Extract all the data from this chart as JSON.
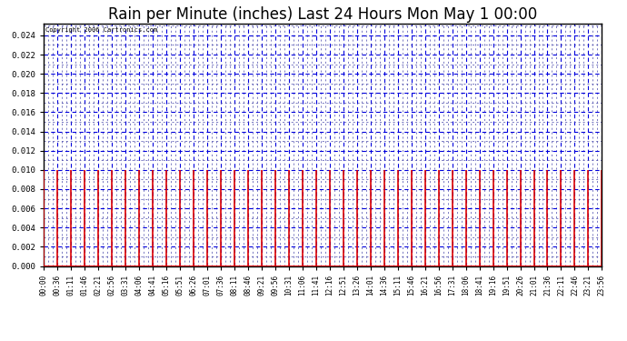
{
  "title": "Rain per Minute (inches) Last 24 Hours Mon May 1 00:00",
  "copyright_text": "Copyright 2006 Cartronics.com",
  "ylim": [
    0.0,
    0.0252
  ],
  "yticks": [
    0.0,
    0.002,
    0.004,
    0.006,
    0.008,
    0.01,
    0.012,
    0.014,
    0.016,
    0.018,
    0.02,
    0.022,
    0.024
  ],
  "bar_value": 0.01,
  "bar_color": "#dd0000",
  "grid_major_color": "#0000dd",
  "grid_minor_color": "#4444aa",
  "bg_color": "#ffffff",
  "title_fontsize": 12,
  "xlabel_fontsize": 5.5,
  "ylabel_fontsize": 6.5,
  "total_minutes": 1440,
  "n_bars": 42,
  "xtick_labels": [
    "00:00",
    "00:36",
    "01:11",
    "01:46",
    "02:21",
    "02:56",
    "03:31",
    "04:06",
    "04:41",
    "05:16",
    "05:51",
    "06:26",
    "07:01",
    "07:36",
    "08:11",
    "08:46",
    "09:21",
    "09:56",
    "10:31",
    "11:06",
    "11:41",
    "12:16",
    "12:51",
    "13:26",
    "14:01",
    "14:36",
    "15:11",
    "15:46",
    "16:21",
    "16:56",
    "17:31",
    "18:06",
    "18:41",
    "19:16",
    "19:51",
    "20:26",
    "21:01",
    "21:36",
    "22:11",
    "22:46",
    "23:21",
    "23:56"
  ],
  "bottom_line_color": "#dd0000",
  "spine_color": "#000000",
  "bar_linewidth": 1.2
}
